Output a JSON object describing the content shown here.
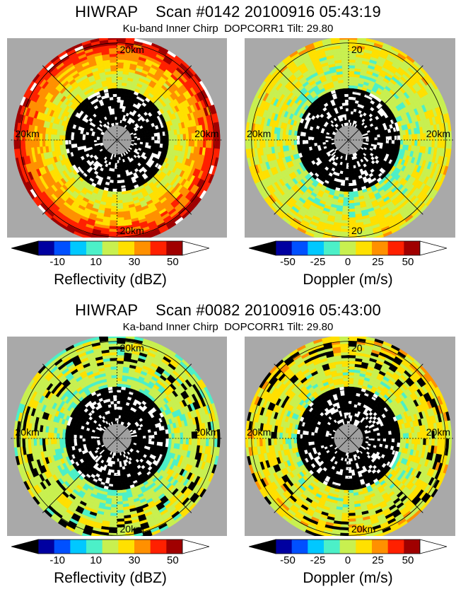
{
  "chart_data": [
    {
      "type": "heatmap",
      "title": "HIWRAP    Scan #0142 20100916 05:43:19",
      "subtitle": "Ku-band Inner Chirp  DOPCORR1 Tilt: 29.80",
      "panels": [
        {
          "colorbar_label": "Reflectivity (dBZ)",
          "colorbar_ticks": [
            "-10",
            "10",
            "30",
            "50"
          ],
          "range_labels": [
            "20km",
            "20km",
            "20km",
            "20km"
          ],
          "range_rings_km": [
            10,
            20
          ],
          "vmin": -20,
          "vmax": 55,
          "field": "reflectivity",
          "ring_profile": [
            {
              "r": 0.0,
              "v": null
            },
            {
              "r": 0.3,
              "v": null
            },
            {
              "r": 0.5,
              "v": 20
            },
            {
              "r": 0.65,
              "v": 24
            },
            {
              "r": 0.8,
              "v": 32
            },
            {
              "r": 0.93,
              "v": 45
            },
            {
              "r": 1.0,
              "v": 50
            }
          ]
        },
        {
          "colorbar_label": "Doppler (m/s)",
          "colorbar_ticks": [
            "-50",
            "-25",
            "0",
            "25",
            "50"
          ],
          "range_labels": [
            "20",
            "20km",
            "20km",
            "20"
          ],
          "range_rings_km": [
            10,
            20
          ],
          "vmin": -60,
          "vmax": 60,
          "field": "doppler",
          "ring_profile": [
            {
              "r": 0.0,
              "v": null
            },
            {
              "r": 0.3,
              "v": null
            },
            {
              "r": 0.5,
              "v": -5
            },
            {
              "r": 0.8,
              "v": 5
            },
            {
              "r": 1.0,
              "v": 10
            }
          ]
        }
      ]
    },
    {
      "type": "heatmap",
      "title": "HIWRAP    Scan #0082 20100916 05:43:00",
      "subtitle": "Ka-band Inner Chirp  DOPCORR1 Tilt: 29.80",
      "panels": [
        {
          "colorbar_label": "Reflectivity (dBZ)",
          "colorbar_ticks": [
            "-10",
            "10",
            "30",
            "50"
          ],
          "range_labels": [
            "20km",
            "20km",
            "20km",
            "20km"
          ],
          "range_rings_km": [
            10,
            20
          ],
          "vmin": -20,
          "vmax": 55,
          "field": "reflectivity",
          "ring_profile": [
            {
              "r": 0.0,
              "v": null
            },
            {
              "r": 0.3,
              "v": null
            },
            {
              "r": 0.5,
              "v": 14
            },
            {
              "r": 0.7,
              "v": 18
            },
            {
              "r": 0.9,
              "v": 20
            },
            {
              "r": 1.0,
              "v": 16
            }
          ]
        },
        {
          "colorbar_label": "Doppler (m/s)",
          "colorbar_ticks": [
            "-50",
            "-25",
            "0",
            "25",
            "50"
          ],
          "range_labels": [
            "20",
            "20km",
            "20km",
            "20km"
          ],
          "range_rings_km": [
            10,
            20
          ],
          "vmin": -60,
          "vmax": 60,
          "field": "doppler",
          "ring_profile": [
            {
              "r": 0.0,
              "v": null
            },
            {
              "r": 0.3,
              "v": null
            },
            {
              "r": 0.5,
              "v": 0
            },
            {
              "r": 0.8,
              "v": 8
            },
            {
              "r": 1.0,
              "v": 12
            }
          ]
        }
      ]
    }
  ],
  "colors": {
    "background": "#a9a9a9",
    "no_data": "#000000",
    "center": "#a0a0a0",
    "colormap": [
      "#000000",
      "#0000a0",
      "#0050ff",
      "#00c8ff",
      "#4cf0c8",
      "#c8f050",
      "#ffe000",
      "#ff9000",
      "#ff2000",
      "#a00000",
      "#ffffff"
    ]
  }
}
